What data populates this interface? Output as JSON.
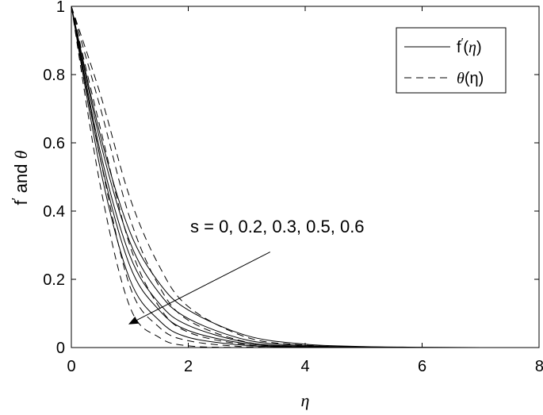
{
  "chart_data": {
    "type": "line",
    "title": "",
    "xlabel": "η",
    "ylabel": {
      "main": "f",
      "prime": "′",
      "rest": " and ",
      "theta": "θ"
    },
    "xlim": [
      0,
      8
    ],
    "ylim": [
      0,
      1
    ],
    "xticks": [
      "0",
      "2",
      "4",
      "6",
      "8"
    ],
    "yticks": [
      "0",
      "0.2",
      "0.4",
      "0.6",
      "0.8",
      "1"
    ],
    "legend": {
      "placement": "top-right",
      "entries": [
        {
          "style": "solid",
          "label_main": "f",
          "label_prime": "′",
          "label_open": "(",
          "label_var": "η",
          "label_close": ")"
        },
        {
          "style": "dashed",
          "label_main": "",
          "label_prime": "",
          "label_open": "",
          "label_var": "θ",
          "label_close": "(η)"
        }
      ]
    },
    "annotation": {
      "text": "s = 0, 0.2, 0.3, 0.5, 0.6",
      "arrow_from": [
        3.4,
        0.28
      ],
      "arrow_to": [
        1.0,
        0.07
      ]
    },
    "x": [
      0,
      0.5,
      1,
      1.5,
      2,
      3,
      4,
      5,
      6,
      7
    ],
    "series": [
      {
        "style": "solid",
        "values": [
          1,
          0.52,
          0.2,
          0.08,
          0.03,
          0.006,
          0.001,
          0,
          0,
          0
        ]
      },
      {
        "style": "solid",
        "values": [
          1,
          0.55,
          0.24,
          0.11,
          0.05,
          0.011,
          0.002,
          0.0005,
          0,
          0
        ]
      },
      {
        "style": "solid",
        "values": [
          1,
          0.57,
          0.27,
          0.13,
          0.065,
          0.015,
          0.004,
          0.001,
          0,
          0
        ]
      },
      {
        "style": "solid",
        "values": [
          1,
          0.6,
          0.31,
          0.16,
          0.085,
          0.022,
          0.006,
          0.0015,
          0,
          0
        ]
      },
      {
        "style": "solid",
        "values": [
          1,
          0.62,
          0.34,
          0.19,
          0.11,
          0.035,
          0.01,
          0.003,
          0.001,
          0
        ]
      },
      {
        "style": "dashed",
        "values": [
          1,
          0.47,
          0.12,
          0.03,
          0.005,
          0,
          0,
          0,
          0,
          0
        ]
      },
      {
        "style": "dashed",
        "values": [
          1,
          0.55,
          0.18,
          0.06,
          0.02,
          0.002,
          0,
          0,
          0,
          0
        ]
      },
      {
        "style": "dashed",
        "values": [
          1,
          0.64,
          0.3,
          0.12,
          0.045,
          0.008,
          0.001,
          0,
          0,
          0
        ]
      },
      {
        "style": "dashed",
        "values": [
          1,
          0.7,
          0.38,
          0.18,
          0.08,
          0.016,
          0.003,
          0,
          0,
          0
        ]
      },
      {
        "style": "dashed",
        "values": [
          1,
          0.74,
          0.44,
          0.24,
          0.12,
          0.03,
          0.007,
          0.001,
          0,
          0
        ]
      }
    ]
  }
}
